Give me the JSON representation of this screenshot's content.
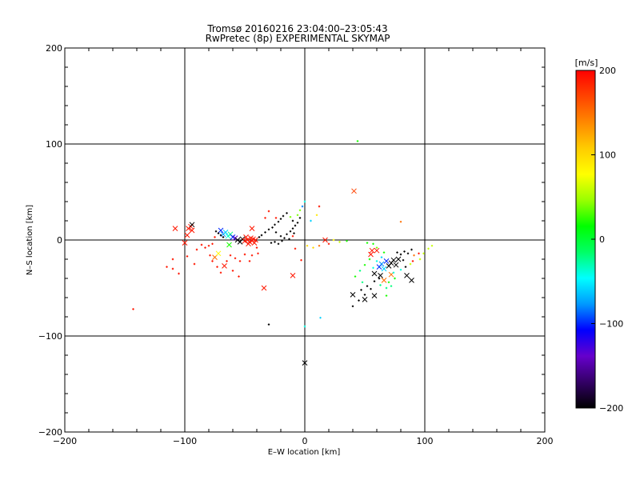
{
  "chart_data": {
    "type": "scatter",
    "title": "Tromsø 20160216 23:04:00–23:05:43",
    "subtitle": "RwPretec (8p) EXPERIMENTAL SKYMAP",
    "xlabel": "E–W location [km]",
    "ylabel": "N–S location [km]",
    "xlim": [
      -200,
      200
    ],
    "ylim": [
      -200,
      200
    ],
    "xticks": [
      -200,
      -100,
      0,
      100,
      200
    ],
    "yticks": [
      -200,
      -100,
      0,
      100,
      200
    ],
    "xtick_labels": [
      "−200",
      "−100",
      "0",
      "100",
      "200"
    ],
    "ytick_labels": [
      "−200",
      "−100",
      "0",
      "100",
      "200"
    ],
    "grid_lines": [
      -100,
      0,
      100
    ],
    "colorbar": {
      "label": "[m/s]",
      "range": [
        -200,
        200
      ],
      "ticks": [
        200,
        100,
        0,
        -100,
        -200
      ],
      "tick_labels": [
        "200",
        "100",
        "0",
        "−100",
        "−200"
      ],
      "colors": [
        "#000000",
        "#330066",
        "#6600cc",
        "#0000ff",
        "#0099ff",
        "#00ffff",
        "#00ff66",
        "#00ff00",
        "#99ff00",
        "#ffff00",
        "#ffcc00",
        "#ff8800",
        "#ff4400",
        "#ff0000"
      ]
    },
    "series": [
      {
        "name": "crosses",
        "marker": "x",
        "points": [
          {
            "x": -108,
            "y": 12,
            "v": 190
          },
          {
            "x": -97,
            "y": 12,
            "v": 190
          },
          {
            "x": -95,
            "y": 14,
            "v": 190
          },
          {
            "x": -94,
            "y": 10,
            "v": 190
          },
          {
            "x": -98,
            "y": 5,
            "v": 190
          },
          {
            "x": -100,
            "y": -3,
            "v": 190
          },
          {
            "x": -94,
            "y": 16,
            "v": -200
          },
          {
            "x": -75,
            "y": -18,
            "v": 150
          },
          {
            "x": -72,
            "y": -14,
            "v": 80
          },
          {
            "x": -68,
            "y": 6,
            "v": -80
          },
          {
            "x": -66,
            "y": 8,
            "v": -60
          },
          {
            "x": -64,
            "y": 4,
            "v": -40
          },
          {
            "x": -62,
            "y": 6,
            "v": -20
          },
          {
            "x": -60,
            "y": 3,
            "v": -100
          },
          {
            "x": -58,
            "y": 2,
            "v": -140
          },
          {
            "x": -56,
            "y": 0,
            "v": -200
          },
          {
            "x": -54,
            "y": -2,
            "v": -200
          },
          {
            "x": -52,
            "y": 1,
            "v": -200
          },
          {
            "x": -50,
            "y": -1,
            "v": 190
          },
          {
            "x": -48,
            "y": 0,
            "v": 190
          },
          {
            "x": -46,
            "y": -2,
            "v": 190
          },
          {
            "x": -45,
            "y": 2,
            "v": 190
          },
          {
            "x": -44,
            "y": -1,
            "v": 190
          },
          {
            "x": -43,
            "y": 1,
            "v": 190
          },
          {
            "x": -42,
            "y": -3,
            "v": 190
          },
          {
            "x": -41,
            "y": 0,
            "v": 190
          },
          {
            "x": -49,
            "y": 3,
            "v": 190
          },
          {
            "x": -47,
            "y": -4,
            "v": 190
          },
          {
            "x": -67,
            "y": -27,
            "v": 190
          },
          {
            "x": -63,
            "y": -5,
            "v": 20
          },
          {
            "x": -70,
            "y": 10,
            "v": -100
          },
          {
            "x": -44,
            "y": 12,
            "v": 190
          },
          {
            "x": -34,
            "y": -50,
            "v": 190
          },
          {
            "x": -10,
            "y": -37,
            "v": 190
          },
          {
            "x": 17,
            "y": 0,
            "v": 190
          },
          {
            "x": 41,
            "y": 51,
            "v": 170
          },
          {
            "x": 40,
            "y": -57,
            "v": -200
          },
          {
            "x": 50,
            "y": -62,
            "v": -200
          },
          {
            "x": 58,
            "y": -58,
            "v": -200
          },
          {
            "x": 55,
            "y": -15,
            "v": 190
          },
          {
            "x": 56,
            "y": -11,
            "v": 190
          },
          {
            "x": 60,
            "y": -11,
            "v": 190
          },
          {
            "x": 62,
            "y": -28,
            "v": -100
          },
          {
            "x": 64,
            "y": -25,
            "v": -80
          },
          {
            "x": 66,
            "y": -30,
            "v": -60
          },
          {
            "x": 68,
            "y": -22,
            "v": -100
          },
          {
            "x": 70,
            "y": -27,
            "v": -200
          },
          {
            "x": 72,
            "y": -24,
            "v": -200
          },
          {
            "x": 74,
            "y": -21,
            "v": -200
          },
          {
            "x": 76,
            "y": -26,
            "v": -200
          },
          {
            "x": 78,
            "y": -20,
            "v": -200
          },
          {
            "x": 58,
            "y": -35,
            "v": -200
          },
          {
            "x": 63,
            "y": -37,
            "v": -200
          },
          {
            "x": 66,
            "y": -42,
            "v": 150
          },
          {
            "x": 72,
            "y": -36,
            "v": 150
          },
          {
            "x": 85,
            "y": -37,
            "v": -200
          },
          {
            "x": 89,
            "y": -42,
            "v": -200
          },
          {
            "x": 0,
            "y": -128,
            "v": -200
          }
        ]
      },
      {
        "name": "dots",
        "marker": "+",
        "points": [
          {
            "x": -143,
            "y": -72,
            "v": 190
          },
          {
            "x": -115,
            "y": -28,
            "v": 190
          },
          {
            "x": -110,
            "y": -30,
            "v": 190
          },
          {
            "x": -105,
            "y": -35,
            "v": 190
          },
          {
            "x": -110,
            "y": -20,
            "v": 190
          },
          {
            "x": -98,
            "y": -17,
            "v": 190
          },
          {
            "x": -92,
            "y": -25,
            "v": 190
          },
          {
            "x": -90,
            "y": -10,
            "v": 190
          },
          {
            "x": -86,
            "y": -5,
            "v": 190
          },
          {
            "x": -83,
            "y": -8,
            "v": 190
          },
          {
            "x": -80,
            "y": -6,
            "v": 190
          },
          {
            "x": -79,
            "y": -16,
            "v": 190
          },
          {
            "x": -77,
            "y": -4,
            "v": 190
          },
          {
            "x": -74,
            "y": 9,
            "v": -200
          },
          {
            "x": -72,
            "y": 7,
            "v": -200
          },
          {
            "x": -70,
            "y": 5,
            "v": -200
          },
          {
            "x": -68,
            "y": 3,
            "v": -200
          },
          {
            "x": -75,
            "y": 3,
            "v": 190
          },
          {
            "x": -77,
            "y": -22,
            "v": 190
          },
          {
            "x": -73,
            "y": -28,
            "v": 190
          },
          {
            "x": -70,
            "y": -34,
            "v": 190
          },
          {
            "x": -65,
            "y": -22,
            "v": 190
          },
          {
            "x": -60,
            "y": -32,
            "v": 190
          },
          {
            "x": -55,
            "y": -38,
            "v": 190
          },
          {
            "x": -62,
            "y": -16,
            "v": 190
          },
          {
            "x": -58,
            "y": -19,
            "v": 190
          },
          {
            "x": -54,
            "y": -22,
            "v": 190
          },
          {
            "x": -50,
            "y": -15,
            "v": 190
          },
          {
            "x": -46,
            "y": -22,
            "v": 190
          },
          {
            "x": -44,
            "y": -16,
            "v": 190
          },
          {
            "x": -40,
            "y": -8,
            "v": 190
          },
          {
            "x": -39,
            "y": -14,
            "v": 190
          },
          {
            "x": -38,
            "y": 3,
            "v": -200
          },
          {
            "x": -36,
            "y": 5,
            "v": -200
          },
          {
            "x": -33,
            "y": 8,
            "v": -200
          },
          {
            "x": -30,
            "y": 11,
            "v": -200
          },
          {
            "x": -27,
            "y": 13,
            "v": -200
          },
          {
            "x": -25,
            "y": 16,
            "v": -200
          },
          {
            "x": -22,
            "y": 19,
            "v": -200
          },
          {
            "x": -20,
            "y": 22,
            "v": -200
          },
          {
            "x": -18,
            "y": 25,
            "v": -200
          },
          {
            "x": -15,
            "y": 28,
            "v": -200
          },
          {
            "x": -24,
            "y": 8,
            "v": -200
          },
          {
            "x": -20,
            "y": 4,
            "v": -200
          },
          {
            "x": -17,
            "y": 2,
            "v": -200
          },
          {
            "x": -15,
            "y": 6,
            "v": -200
          },
          {
            "x": -12,
            "y": 9,
            "v": -200
          },
          {
            "x": -10,
            "y": 12,
            "v": -200
          },
          {
            "x": -8,
            "y": 15,
            "v": -200
          },
          {
            "x": -6,
            "y": 18,
            "v": -200
          },
          {
            "x": -4,
            "y": 23,
            "v": -200
          },
          {
            "x": -28,
            "y": -3,
            "v": -200
          },
          {
            "x": -25,
            "y": -2,
            "v": -200
          },
          {
            "x": -22,
            "y": -4,
            "v": -200
          },
          {
            "x": -19,
            "y": -1,
            "v": -200
          },
          {
            "x": -13,
            "y": 1,
            "v": -200
          },
          {
            "x": -9,
            "y": 7,
            "v": -200
          },
          {
            "x": -12,
            "y": 24,
            "v": 40
          },
          {
            "x": -10,
            "y": 20,
            "v": -200
          },
          {
            "x": -6,
            "y": 26,
            "v": 40
          },
          {
            "x": -4,
            "y": 31,
            "v": 40
          },
          {
            "x": -2,
            "y": 35,
            "v": -80
          },
          {
            "x": 0,
            "y": 40,
            "v": -40
          },
          {
            "x": -33,
            "y": 23,
            "v": 190
          },
          {
            "x": -30,
            "y": 30,
            "v": 190
          },
          {
            "x": -24,
            "y": 23,
            "v": 190
          },
          {
            "x": -30,
            "y": -88,
            "v": -200
          },
          {
            "x": -10,
            "y": 4,
            "v": 190
          },
          {
            "x": -8,
            "y": -9,
            "v": 190
          },
          {
            "x": -3,
            "y": -21,
            "v": 190
          },
          {
            "x": 0,
            "y": -90,
            "v": -40
          },
          {
            "x": 12,
            "y": 35,
            "v": 190
          },
          {
            "x": 13,
            "y": -81,
            "v": -60
          },
          {
            "x": 5,
            "y": 20,
            "v": -60
          },
          {
            "x": 10,
            "y": 26,
            "v": 90
          },
          {
            "x": 2,
            "y": -6,
            "v": 100
          },
          {
            "x": 7,
            "y": -8,
            "v": 100
          },
          {
            "x": 12,
            "y": -6,
            "v": 150
          },
          {
            "x": 20,
            "y": -4,
            "v": 190
          },
          {
            "x": 24,
            "y": 0,
            "v": 80
          },
          {
            "x": 29,
            "y": -2,
            "v": 60
          },
          {
            "x": 35,
            "y": -1,
            "v": 20
          },
          {
            "x": 44,
            "y": 103,
            "v": 20
          },
          {
            "x": 52,
            "y": -3,
            "v": 20
          },
          {
            "x": 57,
            "y": -4,
            "v": 20
          },
          {
            "x": 60,
            "y": -8,
            "v": 40
          },
          {
            "x": 66,
            "y": -13,
            "v": 20
          },
          {
            "x": 54,
            "y": -20,
            "v": 20
          },
          {
            "x": 50,
            "y": -26,
            "v": 20
          },
          {
            "x": 46,
            "y": -32,
            "v": -20
          },
          {
            "x": 42,
            "y": -38,
            "v": 20
          },
          {
            "x": 48,
            "y": -44,
            "v": -20
          },
          {
            "x": 52,
            "y": -48,
            "v": -200
          },
          {
            "x": 47,
            "y": -52,
            "v": -200
          },
          {
            "x": 50,
            "y": -57,
            "v": -200
          },
          {
            "x": 45,
            "y": -63,
            "v": -200
          },
          {
            "x": 40,
            "y": -69,
            "v": -200
          },
          {
            "x": 55,
            "y": -51,
            "v": -200
          },
          {
            "x": 58,
            "y": -43,
            "v": -200
          },
          {
            "x": 62,
            "y": -40,
            "v": -200
          },
          {
            "x": 68,
            "y": -58,
            "v": 20
          },
          {
            "x": 70,
            "y": -44,
            "v": 20
          },
          {
            "x": 75,
            "y": -40,
            "v": 20
          },
          {
            "x": 77,
            "y": -13,
            "v": -200
          },
          {
            "x": 80,
            "y": -15,
            "v": -200
          },
          {
            "x": 83,
            "y": -12,
            "v": -200
          },
          {
            "x": 86,
            "y": -14,
            "v": -200
          },
          {
            "x": 89,
            "y": -10,
            "v": -200
          },
          {
            "x": 91,
            "y": -16,
            "v": 150
          },
          {
            "x": 95,
            "y": -14,
            "v": 190
          },
          {
            "x": 80,
            "y": 19,
            "v": 150
          },
          {
            "x": 96,
            "y": -20,
            "v": 60
          },
          {
            "x": 99,
            "y": -14,
            "v": 60
          },
          {
            "x": 103,
            "y": -9,
            "v": 60
          },
          {
            "x": 106,
            "y": -6,
            "v": 60
          },
          {
            "x": 88,
            "y": -25,
            "v": 60
          },
          {
            "x": 84,
            "y": -28,
            "v": -200
          },
          {
            "x": 80,
            "y": -31,
            "v": -40
          },
          {
            "x": 74,
            "y": -34,
            "v": -40
          },
          {
            "x": 90,
            "y": -22,
            "v": 190
          },
          {
            "x": 64,
            "y": -18,
            "v": -60
          },
          {
            "x": 60,
            "y": -22,
            "v": -40
          },
          {
            "x": 57,
            "y": -29,
            "v": -40
          },
          {
            "x": 63,
            "y": -47,
            "v": -20
          },
          {
            "x": 68,
            "y": -50,
            "v": -20
          },
          {
            "x": 72,
            "y": -48,
            "v": -20
          },
          {
            "x": 82,
            "y": -21,
            "v": -200
          }
        ]
      }
    ]
  }
}
